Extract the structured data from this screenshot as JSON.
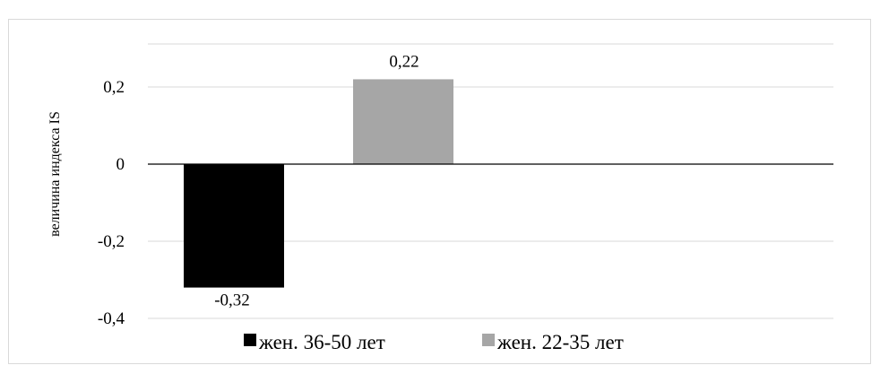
{
  "chart_data": {
    "type": "bar",
    "title": "",
    "xlabel": "",
    "ylabel": "величина индекса    IS",
    "ylim": [
      -0.4,
      0.3
    ],
    "yticks": [
      {
        "value": -0.4,
        "label": "-0,4"
      },
      {
        "value": -0.2,
        "label": "-0,2"
      },
      {
        "value": 0,
        "label": "0"
      },
      {
        "value": 0.2,
        "label": "0,2"
      }
    ],
    "grid": true,
    "legend_position": "bottom",
    "series": [
      {
        "name": "жен. 36-50 лет",
        "value": -0.32,
        "label": "-0,32",
        "color": "#000000"
      },
      {
        "name": "жен. 22-35 лет",
        "value": 0.22,
        "label": "0,22",
        "color": "#a6a6a6"
      }
    ]
  }
}
